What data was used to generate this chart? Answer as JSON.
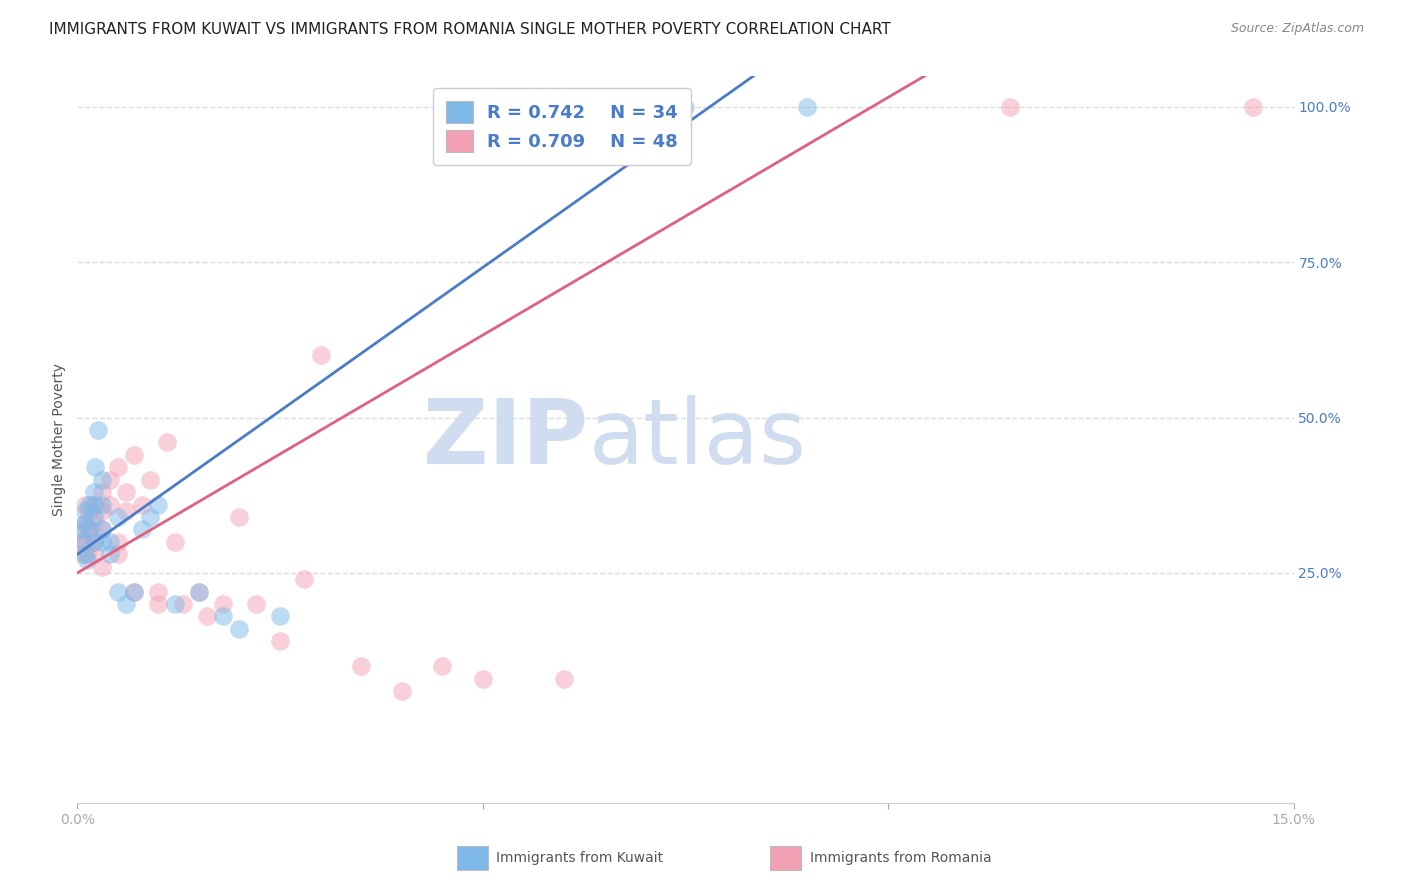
{
  "title": "IMMIGRANTS FROM KUWAIT VS IMMIGRANTS FROM ROMANIA SINGLE MOTHER POVERTY CORRELATION CHART",
  "source": "Source: ZipAtlas.com",
  "ylabel_label": "Single Mother Poverty",
  "x_min": 0.0,
  "x_max": 0.15,
  "y_min": -0.12,
  "y_max": 1.05,
  "y_ticks": [
    0.25,
    0.5,
    0.75,
    1.0
  ],
  "y_tick_labels": [
    "25.0%",
    "50.0%",
    "75.0%",
    "100.0%"
  ],
  "x_tick_labels": [
    "0.0%",
    "",
    "",
    "15.0%"
  ],
  "legend_r_kuwait": "0.742",
  "legend_n_kuwait": "34",
  "legend_r_romania": "0.709",
  "legend_n_romania": "48",
  "kuwait_color": "#7db8e8",
  "romania_color": "#f4a0b5",
  "kuwait_line_color": "#4a7cc7",
  "romania_line_color": "#e06080",
  "watermark": "ZIPatlas",
  "watermark_color": "#d0dff0",
  "background_color": "#ffffff",
  "grid_color": "#dddddd",
  "kuwait_x": [
    0.0005,
    0.0008,
    0.001,
    0.001,
    0.001,
    0.0012,
    0.0015,
    0.0015,
    0.002,
    0.002,
    0.002,
    0.002,
    0.0022,
    0.0025,
    0.003,
    0.003,
    0.003,
    0.003,
    0.004,
    0.004,
    0.005,
    0.005,
    0.006,
    0.007,
    0.008,
    0.009,
    0.01,
    0.012,
    0.015,
    0.018,
    0.02,
    0.025,
    0.075,
    0.09
  ],
  "kuwait_y": [
    0.32,
    0.3,
    0.28,
    0.33,
    0.35,
    0.27,
    0.32,
    0.36,
    0.3,
    0.34,
    0.36,
    0.38,
    0.42,
    0.48,
    0.3,
    0.32,
    0.36,
    0.4,
    0.3,
    0.28,
    0.34,
    0.22,
    0.2,
    0.22,
    0.32,
    0.34,
    0.36,
    0.2,
    0.22,
    0.18,
    0.16,
    0.18,
    1.0,
    1.0
  ],
  "romania_x": [
    0.0004,
    0.0006,
    0.0008,
    0.001,
    0.001,
    0.001,
    0.0012,
    0.0015,
    0.0015,
    0.002,
    0.002,
    0.002,
    0.002,
    0.003,
    0.003,
    0.003,
    0.003,
    0.004,
    0.004,
    0.005,
    0.005,
    0.005,
    0.006,
    0.006,
    0.007,
    0.007,
    0.008,
    0.009,
    0.01,
    0.01,
    0.011,
    0.012,
    0.013,
    0.015,
    0.016,
    0.018,
    0.02,
    0.022,
    0.025,
    0.028,
    0.03,
    0.035,
    0.04,
    0.045,
    0.05,
    0.06,
    0.115,
    0.145
  ],
  "romania_y": [
    0.28,
    0.3,
    0.32,
    0.3,
    0.33,
    0.36,
    0.28,
    0.32,
    0.35,
    0.3,
    0.33,
    0.36,
    0.28,
    0.32,
    0.35,
    0.38,
    0.26,
    0.36,
    0.4,
    0.42,
    0.3,
    0.28,
    0.38,
    0.35,
    0.44,
    0.22,
    0.36,
    0.4,
    0.2,
    0.22,
    0.46,
    0.3,
    0.2,
    0.22,
    0.18,
    0.2,
    0.34,
    0.2,
    0.14,
    0.24,
    0.6,
    0.1,
    0.06,
    0.1,
    0.08,
    0.08,
    1.0,
    1.0
  ],
  "ku_line_x0": 0.0,
  "ku_line_y0": 0.28,
  "ku_line_x1": 0.078,
  "ku_line_y1": 1.0,
  "ro_line_x0": 0.0,
  "ro_line_y0": 0.25,
  "ro_line_x1": 0.098,
  "ro_line_y1": 1.0,
  "title_fontsize": 11,
  "axis_fontsize": 10,
  "tick_fontsize": 10,
  "legend_fontsize": 13,
  "dot_size": 180
}
